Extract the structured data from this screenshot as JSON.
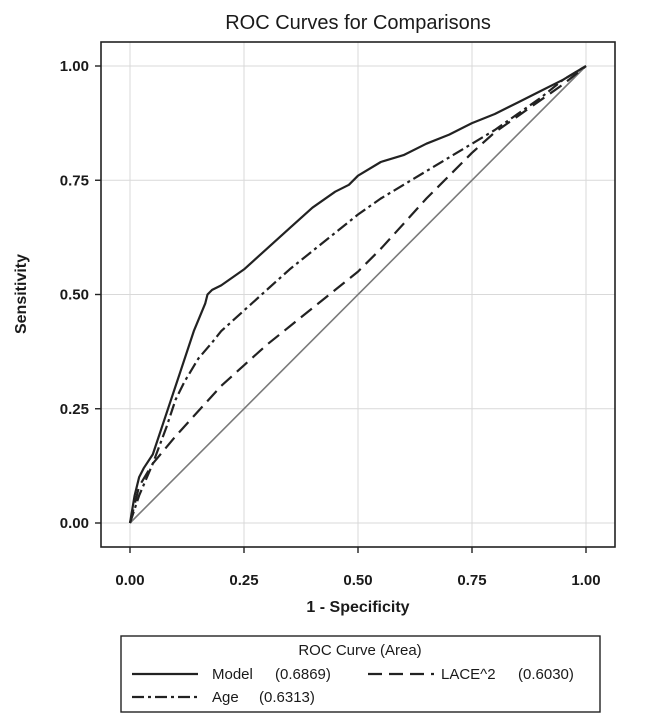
{
  "chart_data": {
    "type": "line",
    "title": "ROC Curves for Comparisons",
    "xlabel": "1 - Specificity",
    "ylabel": "Sensitivity",
    "xlim": [
      0,
      1
    ],
    "ylim": [
      0,
      1
    ],
    "x_ticks": [
      "0.00",
      "0.25",
      "0.50",
      "0.75",
      "1.00"
    ],
    "y_ticks": [
      "0.00",
      "0.25",
      "0.50",
      "0.75",
      "1.00"
    ],
    "grid": true,
    "legend_placement": "bottom",
    "legend_title": "ROC Curve (Area)",
    "series": [
      {
        "name": "Model",
        "legend_label": "Model",
        "area": "(0.6869)",
        "style": "solid",
        "x": [
          0.0,
          0.01,
          0.02,
          0.03,
          0.05,
          0.08,
          0.11,
          0.14,
          0.165,
          0.17,
          0.18,
          0.2,
          0.25,
          0.3,
          0.35,
          0.4,
          0.45,
          0.48,
          0.5,
          0.55,
          0.6,
          0.65,
          0.7,
          0.75,
          0.8,
          0.85,
          0.9,
          0.95,
          1.0
        ],
        "y": [
          0.0,
          0.06,
          0.1,
          0.12,
          0.15,
          0.24,
          0.33,
          0.42,
          0.48,
          0.5,
          0.51,
          0.52,
          0.555,
          0.6,
          0.645,
          0.69,
          0.725,
          0.74,
          0.76,
          0.79,
          0.805,
          0.83,
          0.85,
          0.875,
          0.895,
          0.92,
          0.945,
          0.97,
          1.0
        ]
      },
      {
        "name": "LACE^2",
        "legend_label": "LACE^2",
        "area": "(0.6030)",
        "style": "dashed",
        "x": [
          0.0,
          0.02,
          0.05,
          0.1,
          0.15,
          0.2,
          0.25,
          0.3,
          0.35,
          0.4,
          0.45,
          0.5,
          0.55,
          0.6,
          0.65,
          0.7,
          0.75,
          0.8,
          0.85,
          0.9,
          0.95,
          1.0
        ],
        "y": [
          0.0,
          0.08,
          0.13,
          0.19,
          0.245,
          0.3,
          0.345,
          0.39,
          0.43,
          0.47,
          0.51,
          0.55,
          0.6,
          0.655,
          0.71,
          0.76,
          0.81,
          0.855,
          0.89,
          0.925,
          0.96,
          1.0
        ]
      },
      {
        "name": "Age",
        "legend_label": "Age",
        "area": "(0.6313)",
        "style": "dashdot",
        "x": [
          0.0,
          0.02,
          0.05,
          0.08,
          0.1,
          0.12,
          0.15,
          0.18,
          0.2,
          0.25,
          0.3,
          0.35,
          0.4,
          0.45,
          0.5,
          0.55,
          0.6,
          0.65,
          0.7,
          0.75,
          0.8,
          0.85,
          0.9,
          0.95,
          1.0
        ],
        "y": [
          0.0,
          0.06,
          0.13,
          0.21,
          0.27,
          0.31,
          0.36,
          0.395,
          0.42,
          0.465,
          0.51,
          0.555,
          0.595,
          0.635,
          0.675,
          0.71,
          0.74,
          0.77,
          0.8,
          0.83,
          0.86,
          0.895,
          0.93,
          0.97,
          1.0
        ]
      }
    ],
    "reference_line": {
      "x": [
        0,
        1
      ],
      "y": [
        0,
        1
      ]
    }
  }
}
